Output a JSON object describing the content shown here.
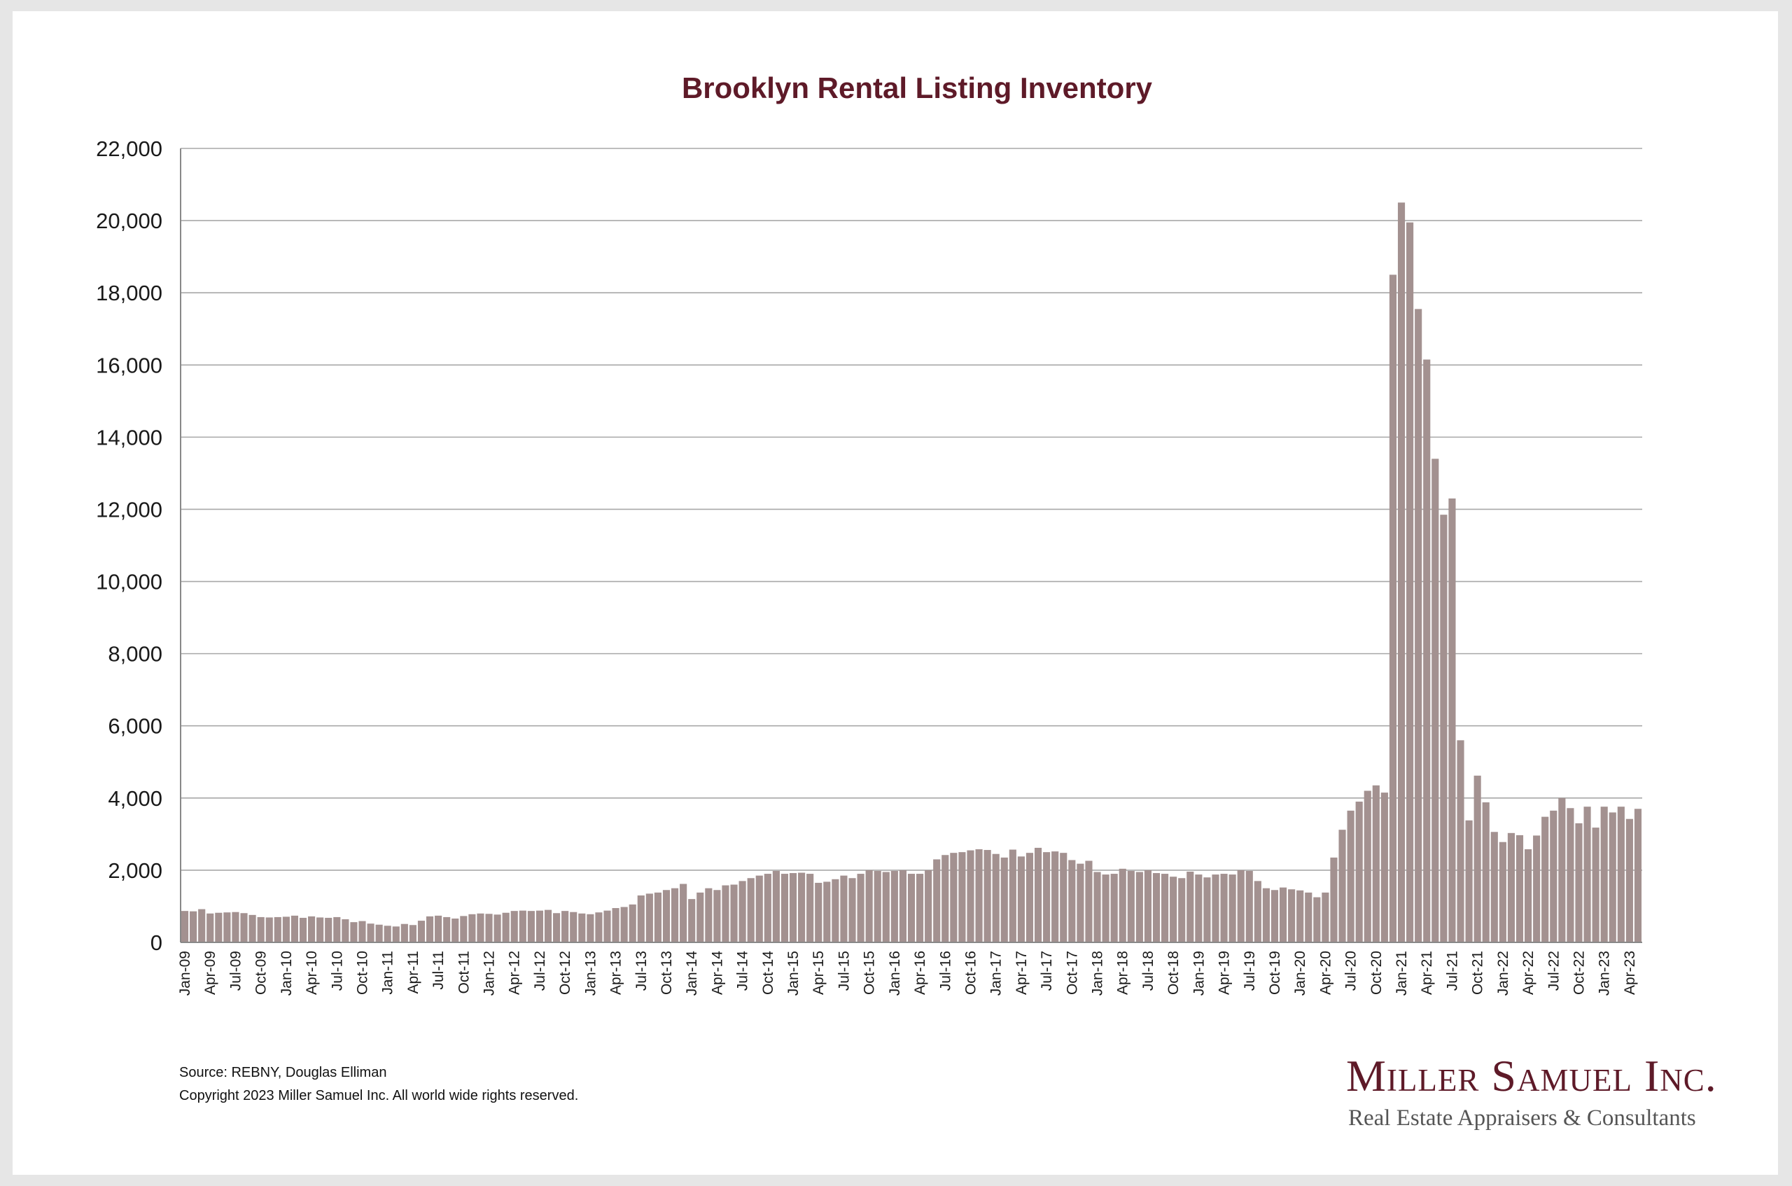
{
  "chart_data": {
    "type": "bar",
    "title": "Brooklyn Rental Listing Inventory",
    "xlabel": "",
    "ylabel": "",
    "ylim": [
      0,
      22000
    ],
    "yticks": [
      "0",
      "2,000",
      "4,000",
      "6,000",
      "8,000",
      "10,000",
      "12,000",
      "14,000",
      "16,000",
      "18,000",
      "20,000",
      "22,000"
    ],
    "grid": true,
    "bar_color": "#a39190",
    "x_tick_labels": [
      "Jan-09",
      "Apr-09",
      "Jul-09",
      "Oct-09",
      "Jan-10",
      "Apr-10",
      "Jul-10",
      "Oct-10",
      "Jan-11",
      "Apr-11",
      "Jul-11",
      "Oct-11",
      "Jan-12",
      "Apr-12",
      "Jul-12",
      "Oct-12",
      "Jan-13",
      "Apr-13",
      "Jul-13",
      "Oct-13",
      "Jan-14",
      "Apr-14",
      "Jul-14",
      "Oct-14",
      "Jan-15",
      "Apr-15",
      "Jul-15",
      "Oct-15",
      "Jan-16",
      "Apr-16",
      "Jul-16",
      "Oct-16",
      "Jan-17",
      "Apr-17",
      "Jul-17",
      "Oct-17",
      "Jan-18",
      "Apr-18",
      "Jul-18",
      "Oct-18",
      "Jan-19",
      "Apr-19",
      "Jul-19",
      "Oct-19",
      "Jan-20",
      "Apr-20",
      "Jul-20",
      "Oct-20",
      "Jan-21",
      "Apr-21",
      "Jul-21",
      "Oct-21",
      "Jan-22",
      "Apr-22",
      "Jul-22",
      "Oct-22",
      "Jan-23",
      "Apr-23"
    ],
    "start_month": "Jan-09",
    "values": [
      870,
      860,
      920,
      800,
      820,
      830,
      840,
      810,
      760,
      700,
      690,
      700,
      710,
      740,
      680,
      720,
      690,
      680,
      700,
      640,
      560,
      590,
      520,
      490,
      460,
      440,
      510,
      480,
      600,
      720,
      740,
      700,
      660,
      730,
      780,
      800,
      790,
      770,
      820,
      870,
      880,
      870,
      880,
      900,
      810,
      870,
      840,
      800,
      780,
      830,
      880,
      950,
      980,
      1050,
      1300,
      1350,
      1380,
      1450,
      1500,
      1620,
      1200,
      1380,
      1500,
      1450,
      1580,
      1600,
      1700,
      1780,
      1850,
      1900,
      1980,
      1900,
      1920,
      1930,
      1900,
      1650,
      1680,
      1750,
      1850,
      1780,
      1900,
      2000,
      1980,
      1950,
      1980,
      2000,
      1900,
      1900,
      2000,
      2300,
      2420,
      2480,
      2500,
      2550,
      2580,
      2560,
      2450,
      2350,
      2570,
      2380,
      2480,
      2620,
      2500,
      2520,
      2480,
      2280,
      2180,
      2260,
      1950,
      1880,
      1900,
      2040,
      1980,
      1950,
      2000,
      1920,
      1900,
      1820,
      1780,
      1960,
      1880,
      1800,
      1880,
      1900,
      1880,
      2000,
      1980,
      1700,
      1500,
      1450,
      1520,
      1470,
      1440,
      1380,
      1250,
      1380,
      2350,
      3120,
      3650,
      3900,
      4200,
      4350,
      4150,
      18500,
      20500,
      19950,
      17550,
      16150,
      13400,
      11850,
      12300,
      5600,
      3380,
      4620,
      3880,
      3060,
      2780,
      3030,
      2970,
      2580,
      2960,
      3480,
      3650,
      4000,
      3720,
      3300,
      3760,
      3180,
      3760,
      3600,
      3760,
      3420,
      3700
    ]
  },
  "footer": {
    "source": "Source: REBNY, Douglas Elliman",
    "copyright": "Copyright 2023 Miller Samuel Inc.  All world wide rights reserved."
  },
  "logo": {
    "name": "Miller Samuel Inc.",
    "tagline": "Real Estate Appraisers & Consultants"
  }
}
